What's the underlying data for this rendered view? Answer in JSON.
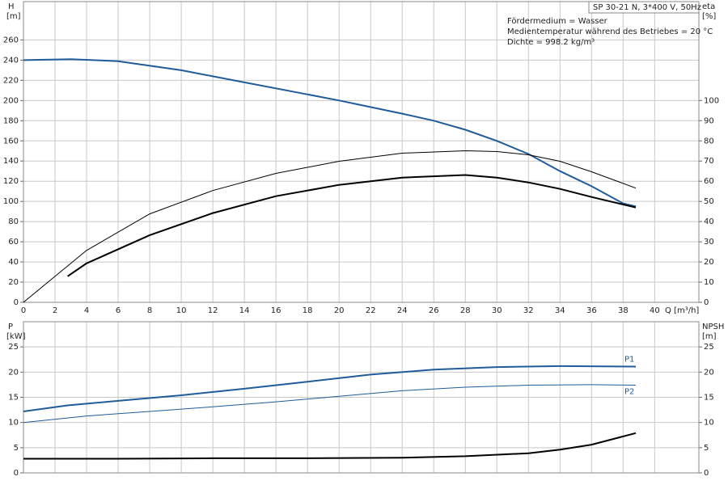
{
  "chart_data": [
    {
      "type": "line",
      "title": "SP 30-21 N, 3*400 V, 50Hz",
      "annotations": [
        "Fördermedium = Wasser",
        "Medientemperatur während des Betriebes = 20 °C",
        "Dichte = 998.2 kg/m³"
      ],
      "xlabel": "Q [m³/h]",
      "ylabel": "H",
      "yunit": "[m]",
      "y2label": "eta",
      "y2unit": "[%]",
      "xlim": [
        0,
        42.8
      ],
      "xticks": [
        0,
        2,
        4,
        6,
        8,
        10,
        12,
        14,
        16,
        18,
        20,
        22,
        24,
        26,
        28,
        30,
        32,
        34,
        36,
        38,
        40
      ],
      "ylim": [
        0,
        298
      ],
      "yticks": [
        0,
        20,
        40,
        60,
        80,
        100,
        120,
        140,
        160,
        180,
        200,
        220,
        240,
        260
      ],
      "y2lim": [
        0,
        149
      ],
      "y2ticks": [
        0,
        10,
        20,
        30,
        40,
        50,
        60,
        70,
        80,
        90,
        100
      ],
      "grid": true,
      "series": [
        {
          "color": "#1f5c99",
          "width": 2,
          "x": [
            0,
            3,
            6,
            10,
            14,
            18,
            20,
            24,
            26,
            28,
            30,
            32,
            34,
            36,
            38,
            38.8
          ],
          "values": [
            240,
            241,
            239,
            230,
            218,
            206,
            200,
            187,
            180,
            171,
            160,
            147,
            130,
            115,
            98,
            95
          ]
        },
        {
          "color": "#000000",
          "width": 1,
          "axis": "y2",
          "x": [
            0,
            4,
            8,
            12,
            16,
            20,
            24,
            28,
            30,
            32,
            34,
            36,
            38.8
          ],
          "values": [
            0,
            25.7,
            43.8,
            55.4,
            63.9,
            69.9,
            73.9,
            75.1,
            74.7,
            73.1,
            69.9,
            64.7,
            56.6
          ]
        },
        {
          "color": "#000000",
          "width": 2,
          "axis": "y2",
          "x": [
            2.8,
            4,
            8,
            12,
            16,
            20,
            24,
            28,
            30,
            32,
            34,
            36,
            38.8
          ],
          "values": [
            12.9,
            19.3,
            33.3,
            44.2,
            52.6,
            58.2,
            61.8,
            63.1,
            61.8,
            59.4,
            56.2,
            52.2,
            47.0
          ]
        }
      ]
    },
    {
      "type": "line",
      "ylabel": "P",
      "yunit": "[kW]",
      "y2label": "NPSH",
      "y2unit": "[m]",
      "xlim": [
        0,
        42.8
      ],
      "ylim": [
        0,
        30
      ],
      "yticks": [
        0,
        5,
        10,
        15,
        20,
        25
      ],
      "y2lim": [
        0,
        30
      ],
      "y2ticks": [
        0,
        5,
        10,
        15,
        20,
        25
      ],
      "grid": true,
      "series": [
        {
          "name": "P1",
          "color": "#1f5c99",
          "width": 2,
          "x": [
            0,
            2.8,
            6,
            10,
            14,
            18,
            22,
            26,
            30,
            34,
            38.8
          ],
          "values": [
            12.2,
            13.4,
            14.3,
            15.4,
            16.7,
            18.1,
            19.5,
            20.5,
            21.0,
            21.2,
            21.1
          ]
        },
        {
          "name": "P2",
          "color": "#1f5c99",
          "width": 1,
          "x": [
            0,
            4,
            8,
            12,
            16,
            20,
            24,
            28,
            32,
            36,
            38.8
          ],
          "values": [
            10.0,
            11.3,
            12.2,
            13.1,
            14.1,
            15.2,
            16.3,
            17.0,
            17.4,
            17.5,
            17.4
          ]
        },
        {
          "color": "#000000",
          "width": 2,
          "axis": "y2",
          "x": [
            0,
            6,
            12,
            18,
            24,
            28,
            32,
            34,
            36,
            38.8
          ],
          "values": [
            2.8,
            2.8,
            2.9,
            2.9,
            3.0,
            3.3,
            3.9,
            4.6,
            5.6,
            7.9
          ]
        }
      ]
    }
  ]
}
